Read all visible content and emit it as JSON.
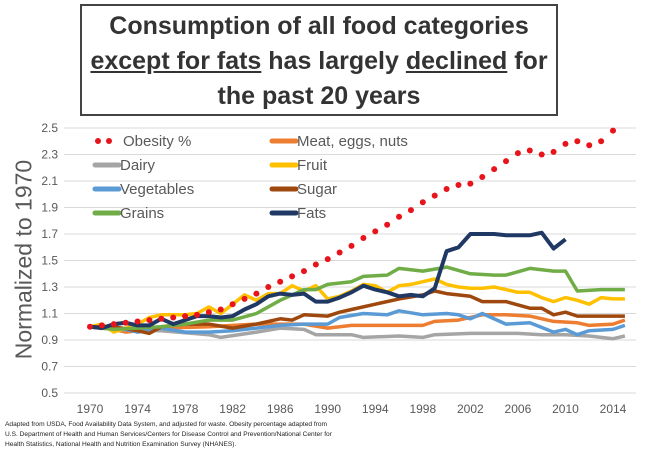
{
  "chart_data": {
    "type": "line",
    "title_parts": [
      "Consumption of all food categories",
      "except for fats",
      " has largely ",
      "declined",
      " for",
      "the past 20 years"
    ],
    "ylabel": "Normalized to 1970",
    "xlabel": "",
    "xlim": [
      1970,
      2015
    ],
    "ylim": [
      0.5,
      2.5
    ],
    "xticks": [
      1970,
      1974,
      1978,
      1982,
      1986,
      1990,
      1994,
      1998,
      2002,
      2006,
      2010,
      2014
    ],
    "yticks": [
      0.5,
      0.7,
      0.9,
      1.1,
      1.3,
      1.5,
      1.7,
      1.9,
      2.1,
      2.3,
      2.5
    ],
    "grid": true,
    "legend_placement": "top-left",
    "series": [
      {
        "name": "Obesity %",
        "color": "#e8141b",
        "style": "dotted",
        "points": [
          [
            1970,
            1.0
          ],
          [
            1971,
            1.01
          ],
          [
            1972,
            1.02
          ],
          [
            1973,
            1.03
          ],
          [
            1974,
            1.04
          ],
          [
            1975,
            1.05
          ],
          [
            1976,
            1.06
          ],
          [
            1977,
            1.07
          ],
          [
            1978,
            1.08
          ],
          [
            1979,
            1.09
          ],
          [
            1980,
            1.11
          ],
          [
            1981,
            1.13
          ],
          [
            1982,
            1.17
          ],
          [
            1983,
            1.21
          ],
          [
            1984,
            1.25
          ],
          [
            1985,
            1.3
          ],
          [
            1986,
            1.34
          ],
          [
            1987,
            1.38
          ],
          [
            1988,
            1.42
          ],
          [
            1989,
            1.47
          ],
          [
            1990,
            1.51
          ],
          [
            1991,
            1.56
          ],
          [
            1992,
            1.61
          ],
          [
            1993,
            1.67
          ],
          [
            1994,
            1.72
          ],
          [
            1995,
            1.77
          ],
          [
            1996,
            1.83
          ],
          [
            1997,
            1.88
          ],
          [
            1998,
            1.94
          ],
          [
            1999,
            1.99
          ],
          [
            2000,
            2.04
          ],
          [
            2001,
            2.07
          ],
          [
            2002,
            2.08
          ],
          [
            2003,
            2.13
          ],
          [
            2004,
            2.19
          ],
          [
            2005,
            2.25
          ],
          [
            2006,
            2.31
          ],
          [
            2007,
            2.33
          ],
          [
            2008,
            2.3
          ],
          [
            2009,
            2.32
          ],
          [
            2010,
            2.38
          ],
          [
            2011,
            2.4
          ],
          [
            2012,
            2.37
          ],
          [
            2013,
            2.4
          ],
          [
            2014,
            2.48
          ]
        ]
      },
      {
        "name": "Meat, eggs, nuts",
        "color": "#ed7d31",
        "points": [
          [
            1970,
            1.0
          ],
          [
            1972,
            0.98
          ],
          [
            1973,
            0.96
          ],
          [
            1976,
            0.99
          ],
          [
            1980,
            1.0
          ],
          [
            1984,
            1.02
          ],
          [
            1988,
            1.02
          ],
          [
            1990,
            0.99
          ],
          [
            1992,
            1.01
          ],
          [
            1996,
            1.01
          ],
          [
            1998,
            1.01
          ],
          [
            1999,
            1.04
          ],
          [
            2001,
            1.05
          ],
          [
            2003,
            1.09
          ],
          [
            2005,
            1.09
          ],
          [
            2007,
            1.08
          ],
          [
            2009,
            1.04
          ],
          [
            2011,
            1.03
          ],
          [
            2012,
            1.01
          ],
          [
            2014,
            1.02
          ],
          [
            2015,
            1.05
          ]
        ]
      },
      {
        "name": "Dairy",
        "color": "#a5a5a5",
        "points": [
          [
            1970,
            1.0
          ],
          [
            1972,
            0.98
          ],
          [
            1976,
            0.97
          ],
          [
            1980,
            0.94
          ],
          [
            1981,
            0.92
          ],
          [
            1984,
            0.96
          ],
          [
            1986,
            0.99
          ],
          [
            1988,
            0.98
          ],
          [
            1989,
            0.94
          ],
          [
            1992,
            0.94
          ],
          [
            1993,
            0.92
          ],
          [
            1996,
            0.93
          ],
          [
            1998,
            0.92
          ],
          [
            1999,
            0.94
          ],
          [
            2002,
            0.95
          ],
          [
            2004,
            0.95
          ],
          [
            2006,
            0.95
          ],
          [
            2008,
            0.94
          ],
          [
            2010,
            0.94
          ],
          [
            2012,
            0.93
          ],
          [
            2014,
            0.91
          ],
          [
            2015,
            0.93
          ]
        ]
      },
      {
        "name": "Fruit",
        "color": "#ffc000",
        "points": [
          [
            1970,
            1.0
          ],
          [
            1971,
            1.02
          ],
          [
            1972,
            0.96
          ],
          [
            1974,
            1.02
          ],
          [
            1975,
            1.07
          ],
          [
            1976,
            1.09
          ],
          [
            1978,
            1.09
          ],
          [
            1979,
            1.1
          ],
          [
            1980,
            1.15
          ],
          [
            1981,
            1.1
          ],
          [
            1982,
            1.17
          ],
          [
            1983,
            1.24
          ],
          [
            1984,
            1.2
          ],
          [
            1985,
            1.25
          ],
          [
            1986,
            1.25
          ],
          [
            1987,
            1.31
          ],
          [
            1988,
            1.27
          ],
          [
            1989,
            1.31
          ],
          [
            1990,
            1.21
          ],
          [
            1991,
            1.23
          ],
          [
            1992,
            1.27
          ],
          [
            1993,
            1.32
          ],
          [
            1994,
            1.31
          ],
          [
            1995,
            1.26
          ],
          [
            1996,
            1.31
          ],
          [
            1997,
            1.32
          ],
          [
            1998,
            1.34
          ],
          [
            1999,
            1.36
          ],
          [
            2000,
            1.32
          ],
          [
            2001,
            1.3
          ],
          [
            2002,
            1.29
          ],
          [
            2003,
            1.29
          ],
          [
            2004,
            1.3
          ],
          [
            2005,
            1.28
          ],
          [
            2006,
            1.26
          ],
          [
            2007,
            1.26
          ],
          [
            2008,
            1.22
          ],
          [
            2009,
            1.19
          ],
          [
            2010,
            1.22
          ],
          [
            2011,
            1.2
          ],
          [
            2012,
            1.17
          ],
          [
            2013,
            1.22
          ],
          [
            2014,
            1.21
          ],
          [
            2015,
            1.21
          ]
        ]
      },
      {
        "name": "Vegetables",
        "color": "#5b9bd5",
        "points": [
          [
            1970,
            1.0
          ],
          [
            1972,
            1.0
          ],
          [
            1974,
            0.96
          ],
          [
            1976,
            0.99
          ],
          [
            1978,
            0.96
          ],
          [
            1980,
            0.96
          ],
          [
            1982,
            0.97
          ],
          [
            1984,
            0.99
          ],
          [
            1986,
            1.01
          ],
          [
            1988,
            1.02
          ],
          [
            1990,
            1.02
          ],
          [
            1991,
            1.07
          ],
          [
            1993,
            1.1
          ],
          [
            1995,
            1.09
          ],
          [
            1996,
            1.12
          ],
          [
            1998,
            1.09
          ],
          [
            2000,
            1.1
          ],
          [
            2001,
            1.09
          ],
          [
            2002,
            1.06
          ],
          [
            2003,
            1.1
          ],
          [
            2005,
            1.02
          ],
          [
            2007,
            1.03
          ],
          [
            2009,
            0.96
          ],
          [
            2010,
            0.98
          ],
          [
            2011,
            0.94
          ],
          [
            2012,
            0.97
          ],
          [
            2014,
            0.98
          ],
          [
            2015,
            1.01
          ]
        ]
      },
      {
        "name": "Sugar",
        "color": "#9e480e",
        "points": [
          [
            1970,
            1.0
          ],
          [
            1972,
            1.0
          ],
          [
            1974,
            0.97
          ],
          [
            1975,
            0.95
          ],
          [
            1976,
            1.0
          ],
          [
            1978,
            1.02
          ],
          [
            1980,
            1.02
          ],
          [
            1982,
            0.99
          ],
          [
            1984,
            1.02
          ],
          [
            1986,
            1.06
          ],
          [
            1987,
            1.05
          ],
          [
            1988,
            1.09
          ],
          [
            1990,
            1.08
          ],
          [
            1991,
            1.11
          ],
          [
            1992,
            1.13
          ],
          [
            1994,
            1.17
          ],
          [
            1996,
            1.21
          ],
          [
            1998,
            1.24
          ],
          [
            1999,
            1.27
          ],
          [
            2000,
            1.25
          ],
          [
            2002,
            1.23
          ],
          [
            2003,
            1.19
          ],
          [
            2005,
            1.19
          ],
          [
            2007,
            1.14
          ],
          [
            2008,
            1.14
          ],
          [
            2009,
            1.09
          ],
          [
            2010,
            1.11
          ],
          [
            2011,
            1.08
          ],
          [
            2013,
            1.08
          ],
          [
            2015,
            1.08
          ]
        ]
      },
      {
        "name": "Grains",
        "color": "#70ad47",
        "points": [
          [
            1970,
            1.0
          ],
          [
            1972,
            0.98
          ],
          [
            1974,
            0.99
          ],
          [
            1976,
            1.0
          ],
          [
            1978,
            1.02
          ],
          [
            1980,
            1.05
          ],
          [
            1982,
            1.05
          ],
          [
            1984,
            1.1
          ],
          [
            1986,
            1.2
          ],
          [
            1988,
            1.28
          ],
          [
            1989,
            1.28
          ],
          [
            1990,
            1.32
          ],
          [
            1992,
            1.34
          ],
          [
            1993,
            1.38
          ],
          [
            1995,
            1.39
          ],
          [
            1996,
            1.44
          ],
          [
            1998,
            1.42
          ],
          [
            2000,
            1.45
          ],
          [
            2002,
            1.4
          ],
          [
            2004,
            1.39
          ],
          [
            2005,
            1.39
          ],
          [
            2007,
            1.44
          ],
          [
            2009,
            1.42
          ],
          [
            2010,
            1.42
          ],
          [
            2011,
            1.27
          ],
          [
            2013,
            1.28
          ],
          [
            2015,
            1.28
          ]
        ]
      },
      {
        "name": "Fats",
        "color": "#203864",
        "points": [
          [
            1970,
            1.0
          ],
          [
            1971,
            0.99
          ],
          [
            1972,
            1.02
          ],
          [
            1973,
            1.03
          ],
          [
            1974,
            1.01
          ],
          [
            1975,
            1.01
          ],
          [
            1976,
            1.06
          ],
          [
            1977,
            1.02
          ],
          [
            1978,
            1.05
          ],
          [
            1979,
            1.08
          ],
          [
            1980,
            1.08
          ],
          [
            1981,
            1.07
          ],
          [
            1982,
            1.08
          ],
          [
            1983,
            1.13
          ],
          [
            1984,
            1.17
          ],
          [
            1985,
            1.23
          ],
          [
            1986,
            1.25
          ],
          [
            1987,
            1.24
          ],
          [
            1988,
            1.25
          ],
          [
            1989,
            1.19
          ],
          [
            1990,
            1.19
          ],
          [
            1991,
            1.22
          ],
          [
            1992,
            1.26
          ],
          [
            1993,
            1.31
          ],
          [
            1994,
            1.28
          ],
          [
            1995,
            1.26
          ],
          [
            1996,
            1.23
          ],
          [
            1997,
            1.24
          ],
          [
            1998,
            1.23
          ],
          [
            1999,
            1.29
          ],
          [
            2000,
            1.57
          ],
          [
            2001,
            1.6
          ],
          [
            2002,
            1.7
          ],
          [
            2003,
            1.7
          ],
          [
            2004,
            1.7
          ],
          [
            2005,
            1.69
          ],
          [
            2006,
            1.69
          ],
          [
            2007,
            1.69
          ],
          [
            2008,
            1.71
          ],
          [
            2009,
            1.59
          ],
          [
            2010,
            1.66
          ]
        ]
      }
    ],
    "legend_order": [
      "Obesity %",
      "Meat, eggs, nuts",
      "Dairy",
      "Fruit",
      "Vegetables",
      "Sugar",
      "Grains",
      "Fats"
    ],
    "source_note": "Adapted from USDA, Food Availability Data System, and adjusted for waste. Obesity percentage adapted from U.S. Department of Health and Human Services/Centers for Disease Control and Prevention/National Center for Health Statistics, National Health and Nutrition Examination Survey (NHANES)."
  }
}
